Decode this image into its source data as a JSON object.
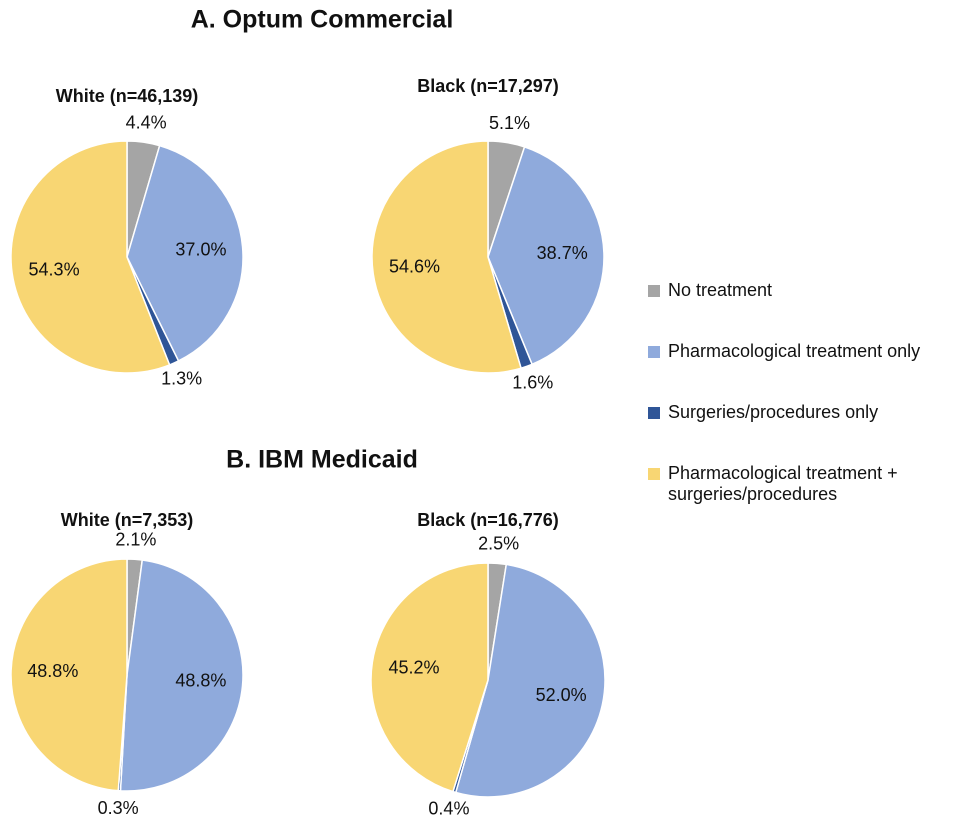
{
  "sections": [
    "A. Optum Commercial",
    "B. IBM Medicaid"
  ],
  "chart_data": [
    {
      "type": "pie",
      "title": "White (n=46,139)",
      "categories": [
        "No treatment",
        "Pharmacological treatment only",
        "Surgeries/procedures only",
        "Pharmacological treatment + surgeries/procedures"
      ],
      "colors": [
        "#a5a5a5",
        "#8faadc",
        "#2f5597",
        "#f8d673"
      ],
      "values": [
        4.4,
        37.0,
        1.3,
        54.3
      ],
      "value_labels": [
        "4.4%",
        "37.0%",
        "1.3%",
        "54.3%"
      ]
    },
    {
      "type": "pie",
      "title": "Black (n=17,297)",
      "colors": [
        "#a5a5a5",
        "#8faadc",
        "#2f5597",
        "#f8d673"
      ],
      "values": [
        5.1,
        38.7,
        1.6,
        54.6
      ],
      "value_labels": [
        "5.1%",
        "38.7%",
        "1.6%",
        "54.6%"
      ]
    },
    {
      "type": "pie",
      "title": "White (n=7,353)",
      "colors": [
        "#a5a5a5",
        "#8faadc",
        "#2f5597",
        "#f8d673"
      ],
      "values": [
        2.1,
        48.8,
        0.3,
        48.8
      ],
      "value_labels": [
        "2.1%",
        "48.8%",
        "0.3%",
        "48.8%"
      ]
    },
    {
      "type": "pie",
      "title": "Black (n=16,776)",
      "colors": [
        "#a5a5a5",
        "#8faadc",
        "#2f5597",
        "#f8d673"
      ],
      "values": [
        2.5,
        52.0,
        0.4,
        45.2
      ],
      "value_labels": [
        "2.5%",
        "52.0%",
        "0.4%",
        "45.2%"
      ]
    }
  ]
}
